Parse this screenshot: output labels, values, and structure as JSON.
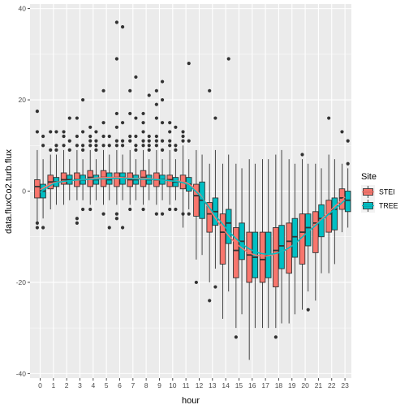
{
  "chart_data": {
    "type": "boxplot",
    "xlabel": "hour",
    "ylabel": "data.fluxCo2.turb.flux",
    "ylim": [
      -41,
      41
    ],
    "yticks": [
      -40,
      -20,
      0,
      20,
      40
    ],
    "categories": [
      "0",
      "1",
      "2",
      "3",
      "4",
      "5",
      "6",
      "7",
      "8",
      "9",
      "10",
      "11",
      "12",
      "13",
      "14",
      "15",
      "16",
      "17",
      "18",
      "19",
      "20",
      "21",
      "22",
      "23"
    ],
    "legend": {
      "title": "Site",
      "position": "right"
    },
    "grid": true,
    "series": [
      {
        "name": "STEI",
        "color": "#F8766D",
        "boxes": [
          {
            "q1": -1.5,
            "median": 1,
            "q3": 2.5,
            "lower": -7,
            "upper": 9,
            "outliers": [
              -8,
              -7,
              13,
              17.5
            ]
          },
          {
            "q1": 0.5,
            "median": 2,
            "q3": 3.5,
            "lower": -4,
            "upper": 8,
            "outliers": [
              9,
              13
            ]
          },
          {
            "q1": 1.5,
            "median": 2.5,
            "q3": 4,
            "lower": -3,
            "upper": 9,
            "outliers": [
              10,
              12,
              13
            ]
          },
          {
            "q1": 1,
            "median": 2.5,
            "q3": 4,
            "lower": -2,
            "upper": 9,
            "outliers": [
              -7,
              -6,
              10,
              12,
              16
            ]
          },
          {
            "q1": 1,
            "median": 3,
            "q3": 4.5,
            "lower": -3,
            "upper": 9,
            "outliers": [
              -4,
              10,
              11,
              12,
              14
            ]
          },
          {
            "q1": 1,
            "median": 3,
            "q3": 4.5,
            "lower": -3,
            "upper": 9,
            "outliers": [
              -5,
              10,
              12,
              15,
              22
            ]
          },
          {
            "q1": 1,
            "median": 3,
            "q3": 4,
            "lower": -3,
            "upper": 9,
            "outliers": [
              -6,
              -5,
              10,
              11,
              14,
              17,
              29,
              37
            ]
          },
          {
            "q1": 1,
            "median": 2.5,
            "q3": 4,
            "lower": -3,
            "upper": 9,
            "outliers": [
              -4,
              11,
              12,
              17,
              22
            ]
          },
          {
            "q1": 1,
            "median": 3,
            "q3": 4.5,
            "lower": -3,
            "upper": 9,
            "outliers": [
              -4,
              10,
              11,
              13,
              15,
              17
            ]
          },
          {
            "q1": 1,
            "median": 2.5,
            "q3": 4,
            "lower": -3,
            "upper": 9,
            "outliers": [
              -5,
              10,
              11,
              12,
              16,
              19,
              22
            ]
          },
          {
            "q1": 1,
            "median": 2.5,
            "q3": 3.5,
            "lower": -3,
            "upper": 9,
            "outliers": [
              -4,
              10,
              11,
              13,
              15
            ]
          },
          {
            "q1": 0.5,
            "median": 2,
            "q3": 3.5,
            "lower": -8,
            "upper": 10,
            "outliers": [
              -5,
              11,
              12,
              13
            ]
          },
          {
            "q1": -5.5,
            "median": -1,
            "q3": 1.5,
            "lower": -15,
            "upper": 9,
            "outliers": [
              -20
            ]
          },
          {
            "q1": -9,
            "median": -5,
            "q3": -2.5,
            "lower": -20,
            "upper": 6,
            "outliers": [
              -24,
              22
            ]
          },
          {
            "q1": -16,
            "median": -9,
            "q3": -5,
            "lower": -28,
            "upper": 6,
            "outliers": []
          },
          {
            "q1": -19,
            "median": -13,
            "q3": -8,
            "lower": -30,
            "upper": 6,
            "outliers": [
              -32
            ]
          },
          {
            "q1": -20,
            "median": -14,
            "q3": -9,
            "lower": -37,
            "upper": 7,
            "outliers": []
          },
          {
            "q1": -20,
            "median": -15,
            "q3": -9,
            "lower": -30,
            "upper": 7,
            "outliers": []
          },
          {
            "q1": -21,
            "median": -13,
            "q3": -8,
            "lower": -30,
            "upper": 8,
            "outliers": [
              -32
            ]
          },
          {
            "q1": -18,
            "median": -11,
            "q3": -7,
            "lower": -29,
            "upper": 7,
            "outliers": []
          },
          {
            "q1": -16,
            "median": -9,
            "q3": -5,
            "lower": -26,
            "upper": 7,
            "outliers": [
              8
            ]
          },
          {
            "q1": -13.5,
            "median": -7,
            "q3": -4.5,
            "lower": -24,
            "upper": 6,
            "outliers": []
          },
          {
            "q1": -9,
            "median": -5,
            "q3": -2,
            "lower": -18,
            "upper": 8,
            "outliers": [
              16
            ]
          },
          {
            "q1": -4,
            "median": -1.5,
            "q3": 0.5,
            "lower": -9,
            "upper": 6,
            "outliers": [
              13
            ]
          }
        ]
      },
      {
        "name": "TREE",
        "color": "#00BFC4",
        "boxes": [
          {
            "q1": -1.5,
            "median": 0,
            "q3": 1.5,
            "lower": -6,
            "upper": 7,
            "outliers": [
              -8,
              10,
              12
            ]
          },
          {
            "q1": 1,
            "median": 2,
            "q3": 3,
            "lower": -3,
            "upper": 8,
            "outliers": [
              9,
              10,
              13
            ]
          },
          {
            "q1": 1.5,
            "median": 2.5,
            "q3": 3.5,
            "lower": -2,
            "upper": 7,
            "outliers": [
              9,
              11,
              16
            ]
          },
          {
            "q1": 1.5,
            "median": 2.5,
            "q3": 3.5,
            "lower": -2,
            "upper": 7,
            "outliers": [
              -4,
              9,
              10,
              13,
              20
            ]
          },
          {
            "q1": 1.5,
            "median": 2.5,
            "q3": 3.5,
            "lower": -2,
            "upper": 7,
            "outliers": [
              9,
              10,
              11,
              13
            ]
          },
          {
            "q1": 1.5,
            "median": 2.5,
            "q3": 4,
            "lower": -2,
            "upper": 8,
            "outliers": [
              -8,
              10,
              12
            ]
          },
          {
            "q1": 1.5,
            "median": 3,
            "q3": 4,
            "lower": -2,
            "upper": 8,
            "outliers": [
              -8,
              10,
              11,
              15,
              36
            ]
          },
          {
            "q1": 1.5,
            "median": 2.5,
            "q3": 3.5,
            "lower": -2,
            "upper": 7,
            "outliers": [
              9,
              10,
              12,
              16,
              25
            ]
          },
          {
            "q1": 1.5,
            "median": 2.5,
            "q3": 3.5,
            "lower": -2,
            "upper": 7,
            "outliers": [
              9,
              10,
              11,
              12,
              21
            ]
          },
          {
            "q1": 1.5,
            "median": 2.5,
            "q3": 3.5,
            "lower": -2,
            "upper": 7,
            "outliers": [
              -5,
              9,
              11,
              15,
              20,
              24
            ]
          },
          {
            "q1": 1,
            "median": 2,
            "q3": 3,
            "lower": -2,
            "upper": 7,
            "outliers": [
              -4,
              9,
              10,
              14
            ]
          },
          {
            "q1": 0,
            "median": 1.5,
            "q3": 3,
            "lower": -4,
            "upper": 7,
            "outliers": [
              -5,
              11,
              28
            ]
          },
          {
            "q1": -6,
            "median": -2,
            "q3": 2,
            "lower": -14,
            "upper": 8,
            "outliers": []
          },
          {
            "q1": -7.5,
            "median": -4.5,
            "q3": -1.5,
            "lower": -17,
            "upper": 9,
            "outliers": [
              -21,
              16
            ]
          },
          {
            "q1": -11.5,
            "median": -7,
            "q3": -4,
            "lower": -22,
            "upper": 8,
            "outliers": [
              29
            ]
          },
          {
            "q1": -15,
            "median": -11,
            "q3": -7,
            "lower": -27,
            "upper": 5,
            "outliers": []
          },
          {
            "q1": -19,
            "median": -14.5,
            "q3": -9,
            "lower": -30,
            "upper": 6,
            "outliers": []
          },
          {
            "q1": -19,
            "median": -14,
            "q3": -9,
            "lower": -30,
            "upper": 7,
            "outliers": []
          },
          {
            "q1": -17,
            "median": -12,
            "q3": -7.5,
            "lower": -29,
            "upper": 9,
            "outliers": []
          },
          {
            "q1": -14.5,
            "median": -10,
            "q3": -6,
            "lower": -27,
            "upper": 6,
            "outliers": []
          },
          {
            "q1": -12,
            "median": -8,
            "q3": -5,
            "lower": -22,
            "upper": 6,
            "outliers": [
              -26
            ]
          },
          {
            "q1": -10,
            "median": -6,
            "q3": -3,
            "lower": -18,
            "upper": 5,
            "outliers": []
          },
          {
            "q1": -8.5,
            "median": -4,
            "q3": -1.5,
            "lower": -16,
            "upper": 7,
            "outliers": []
          },
          {
            "q1": -4.5,
            "median": -2,
            "q3": 0,
            "lower": -8,
            "upper": 5,
            "outliers": [
              6,
              11
            ]
          }
        ]
      }
    ],
    "smooth_lines": [
      {
        "name": "STEI",
        "color": "#F8766D",
        "y": [
          0.3,
          1.8,
          2.2,
          2.5,
          2.8,
          3.0,
          3.0,
          2.8,
          2.8,
          2.5,
          2.2,
          1.9,
          -0.5,
          -5.0,
          -9.0,
          -12.0,
          -13.8,
          -14.2,
          -13.5,
          -12.0,
          -9.5,
          -6.8,
          -4.0,
          -1.3
        ]
      },
      {
        "name": "TREE",
        "color": "#00BFC4",
        "y": [
          -0.3,
          1.6,
          2.2,
          2.5,
          2.6,
          2.7,
          2.8,
          2.7,
          2.6,
          2.5,
          2.2,
          1.6,
          -0.8,
          -4.5,
          -8.0,
          -11.0,
          -13.0,
          -13.8,
          -13.5,
          -12.0,
          -9.5,
          -7.0,
          -4.5,
          -2.0
        ]
      }
    ]
  }
}
